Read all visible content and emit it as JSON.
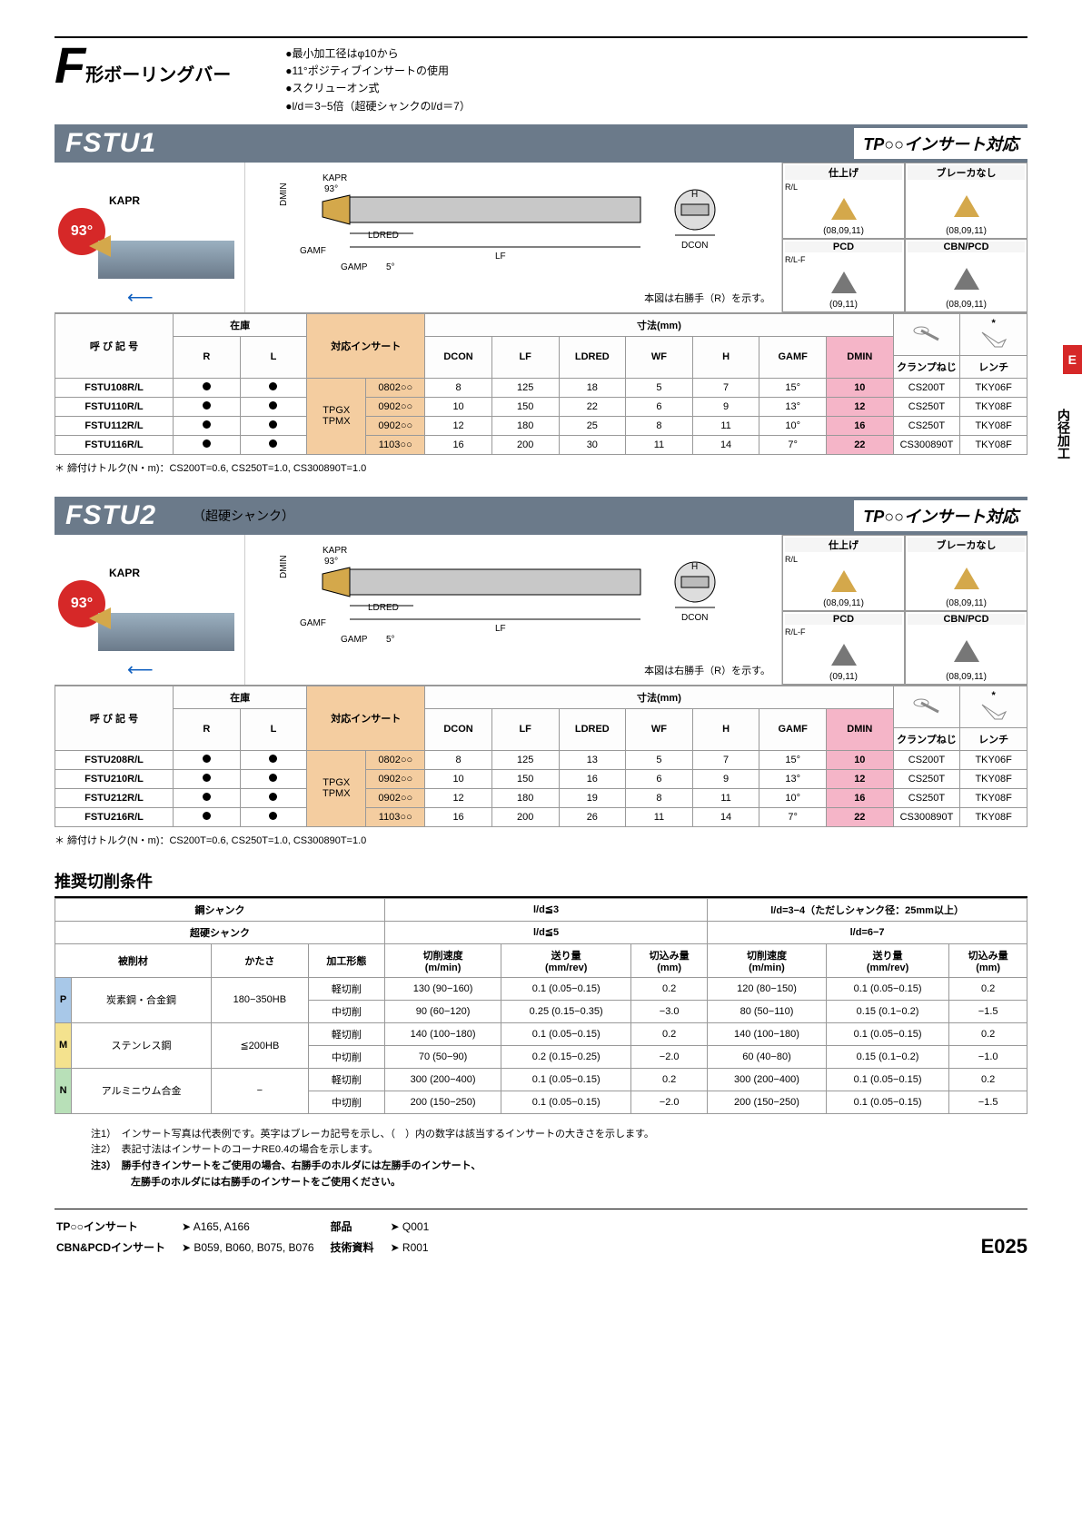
{
  "page_code": "E025",
  "side_tab": "E",
  "side_label": "内径加工",
  "header": {
    "F_big": "F",
    "F_sub": "形ボーリングバー",
    "bullets": [
      "●最小加工径はφ10から",
      "●11°ポジティブインサートの使用",
      "●スクリューオン式",
      "●l/d＝3−5倍（超硬シャンクのl/d＝7）"
    ]
  },
  "sections": [
    {
      "title": "FSTU1",
      "subtitle": "",
      "insert_compat": "TP○○インサート対応",
      "note_under_diagram": "本図は右勝手（R）を示す。",
      "thumbs": {
        "top_l": {
          "hdr": "仕上げ",
          "lbl": "R/L",
          "sizes": "(08,09,11)"
        },
        "top_r": {
          "hdr": "ブレーカなし",
          "lbl": "",
          "sizes": "(08,09,11)"
        },
        "mid_l": {
          "hdr": "PCD",
          "lbl": "R/L-F",
          "sizes": "(09,11)"
        },
        "mid_r": {
          "hdr": "CBN/PCD",
          "lbl": "",
          "sizes": "(08,09,11)"
        }
      },
      "diagram_labels": [
        "KAPR",
        "93°",
        "DMIN",
        "WF",
        "LDRED",
        "GAMF",
        "GAMP",
        "5°",
        "LF",
        "H",
        "DCON"
      ],
      "angle": "93°",
      "kapr": "KAPR",
      "table": {
        "stock_hdr": "在庫",
        "name_hdr": "呼 び 記 号",
        "insert_hdr": "対応インサート",
        "dim_hdr": "寸法(mm)",
        "cols": [
          "DCON",
          "LF",
          "LDRED",
          "WF",
          "H",
          "GAMF",
          "DMIN"
        ],
        "clamp_hdr": "クランプねじ",
        "wrench_hdr": "レンチ",
        "rl": [
          "R",
          "L"
        ],
        "insert_group": "TPGX\nTPMX",
        "rows": [
          {
            "name": "FSTU108R/L",
            "ins": "0802○○",
            "d": [
              8,
              125,
              18,
              5,
              7,
              "15°",
              10
            ],
            "clamp": "CS200T",
            "wr": "TKY06F"
          },
          {
            "name": "FSTU110R/L",
            "ins": "0902○○",
            "d": [
              10,
              150,
              22,
              6,
              9,
              "13°",
              12
            ],
            "clamp": "CS250T",
            "wr": "TKY08F"
          },
          {
            "name": "FSTU112R/L",
            "ins": "0902○○",
            "d": [
              12,
              180,
              25,
              8,
              11,
              "10°",
              16
            ],
            "clamp": "CS250T",
            "wr": "TKY08F"
          },
          {
            "name": "FSTU116R/L",
            "ins": "1103○○",
            "d": [
              16,
              200,
              30,
              11,
              14,
              "7°",
              22
            ],
            "clamp": "CS300890T",
            "wr": "TKY08F"
          }
        ]
      },
      "torque_note": "＊ 締付けトルク(N・m)：CS200T=0.6, CS250T=1.0, CS300890T=1.0"
    },
    {
      "title": "FSTU2",
      "subtitle": "（超硬シャンク）",
      "insert_compat": "TP○○インサート対応",
      "note_under_diagram": "本図は右勝手（R）を示す。",
      "thumbs": {
        "top_l": {
          "hdr": "仕上げ",
          "lbl": "R/L",
          "sizes": "(08,09,11)"
        },
        "top_r": {
          "hdr": "ブレーカなし",
          "lbl": "",
          "sizes": "(08,09,11)"
        },
        "mid_l": {
          "hdr": "PCD",
          "lbl": "R/L-F",
          "sizes": "(09,11)"
        },
        "mid_r": {
          "hdr": "CBN/PCD",
          "lbl": "",
          "sizes": "(08,09,11)"
        }
      },
      "diagram_labels": [
        "KAPR",
        "93°",
        "DMIN",
        "WF",
        "LDRED",
        "GAMF",
        "GAMP",
        "5°",
        "LF",
        "H",
        "DCON"
      ],
      "angle": "93°",
      "kapr": "KAPR",
      "table": {
        "stock_hdr": "在庫",
        "name_hdr": "呼 び 記 号",
        "insert_hdr": "対応インサート",
        "dim_hdr": "寸法(mm)",
        "cols": [
          "DCON",
          "LF",
          "LDRED",
          "WF",
          "H",
          "GAMF",
          "DMIN"
        ],
        "clamp_hdr": "クランプねじ",
        "wrench_hdr": "レンチ",
        "rl": [
          "R",
          "L"
        ],
        "insert_group": "TPGX\nTPMX",
        "rows": [
          {
            "name": "FSTU208R/L",
            "ins": "0802○○",
            "d": [
              8,
              125,
              13,
              5,
              7,
              "15°",
              10
            ],
            "clamp": "CS200T",
            "wr": "TKY06F"
          },
          {
            "name": "FSTU210R/L",
            "ins": "0902○○",
            "d": [
              10,
              150,
              16,
              6,
              9,
              "13°",
              12
            ],
            "clamp": "CS250T",
            "wr": "TKY08F"
          },
          {
            "name": "FSTU212R/L",
            "ins": "0902○○",
            "d": [
              12,
              180,
              19,
              8,
              11,
              "10°",
              16
            ],
            "clamp": "CS250T",
            "wr": "TKY08F"
          },
          {
            "name": "FSTU216R/L",
            "ins": "1103○○",
            "d": [
              16,
              200,
              26,
              11,
              14,
              "7°",
              22
            ],
            "clamp": "CS300890T",
            "wr": "TKY08F"
          }
        ]
      },
      "torque_note": "＊ 締付けトルク(N・m)：CS200T=0.6, CS250T=1.0, CS300890T=1.0"
    }
  ],
  "cond": {
    "title": "推奨切削条件",
    "hdr_top": [
      "鋼シャンク",
      "l/d≦3",
      "l/d=3−4（ただしシャンク径：25mm以上）"
    ],
    "hdr_2": [
      "超硬シャンク",
      "l/d≦5",
      "l/d=6−7"
    ],
    "cols": [
      "被削材",
      "かたさ",
      "加工形態",
      "切削速度\n(m/min)",
      "送り量\n(mm/rev)",
      "切込み量\n(mm)",
      "切削速度\n(m/min)",
      "送り量\n(mm/rev)",
      "切込み量\n(mm)"
    ],
    "rows": [
      {
        "iso": "P",
        "mat": "炭素鋼・合金鋼",
        "hard": "180−350HB",
        "mode": "軽切削",
        "v": [
          "130 (90−160)",
          "0.1 (0.05−0.15)",
          "0.2",
          "120 (80−150)",
          "0.1 (0.05−0.15)",
          "0.2"
        ]
      },
      {
        "iso": "P",
        "mat": "",
        "hard": "",
        "mode": "中切削",
        "v": [
          "90 (60−120)",
          "0.25 (0.15−0.35)",
          "−3.0",
          "80 (50−110)",
          "0.15 (0.1−0.2)",
          "−1.5"
        ]
      },
      {
        "iso": "M",
        "mat": "ステンレス鋼",
        "hard": "≦200HB",
        "mode": "軽切削",
        "v": [
          "140 (100−180)",
          "0.1 (0.05−0.15)",
          "0.2",
          "140 (100−180)",
          "0.1 (0.05−0.15)",
          "0.2"
        ]
      },
      {
        "iso": "M",
        "mat": "",
        "hard": "",
        "mode": "中切削",
        "v": [
          "70 (50−90)",
          "0.2 (0.15−0.25)",
          "−2.0",
          "60 (40−80)",
          "0.15 (0.1−0.2)",
          "−1.0"
        ]
      },
      {
        "iso": "N",
        "mat": "アルミニウム合金",
        "hard": "−",
        "mode": "軽切削",
        "v": [
          "300 (200−400)",
          "0.1 (0.05−0.15)",
          "0.2",
          "300 (200−400)",
          "0.1 (0.05−0.15)",
          "0.2"
        ]
      },
      {
        "iso": "N",
        "mat": "",
        "hard": "",
        "mode": "中切削",
        "v": [
          "200 (150−250)",
          "0.1 (0.05−0.15)",
          "−2.0",
          "200 (150−250)",
          "0.1 (0.05−0.15)",
          "−1.5"
        ]
      }
    ]
  },
  "notes": [
    "注1）　インサート写真は代表例です。英字はブレーカ記号を示し、（　）内の数字は該当するインサートの大きさを示します。",
    "注2）　表記寸法はインサートのコーナRE0.4の場合を示します。",
    "注3）　勝手付きインサートをご使用の場合、右勝手のホルダには左勝手のインサート、",
    "　　　　左勝手のホルダには右勝手のインサートをご使用ください。"
  ],
  "footer": {
    "refs": [
      {
        "l": "TP○○インサート",
        "r": "➤ A165, A166"
      },
      {
        "l": "CBN&PCDインサート",
        "r": "➤ B059, B060, B075, B076"
      },
      {
        "l": "部品",
        "r": "➤ Q001"
      },
      {
        "l": "技術資料",
        "r": "➤ R001"
      }
    ]
  }
}
